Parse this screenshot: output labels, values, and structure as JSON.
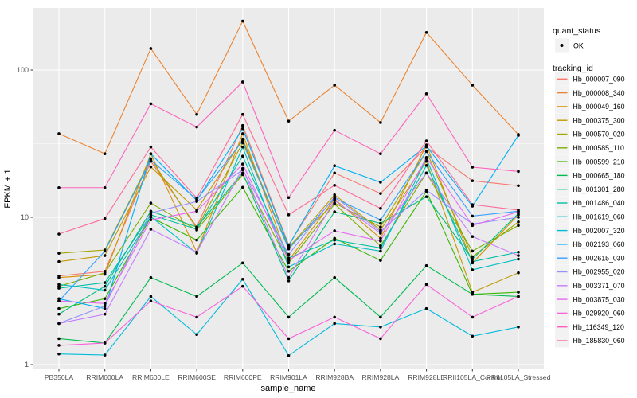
{
  "chart_data": {
    "type": "line",
    "title": "",
    "xlabel": "sample_name",
    "ylabel": "FPKM + 1",
    "y_scale": "log10",
    "ylim": [
      0.92,
      264
    ],
    "y_ticks": [
      1,
      10,
      100
    ],
    "y_tick_labels": [
      "1",
      "10",
      "100"
    ],
    "y_minor_breaks": [
      3.162,
      31.623
    ],
    "grid": true,
    "panel_bg": "#EBEBEB",
    "grid_color": "#FFFFFF",
    "key_bg": "#F2F2F2",
    "point_color": "#000000",
    "tick_label_color": "#4D4D4D",
    "legend_position": "right",
    "legend": {
      "quant_status_title": "quant_status",
      "quant_status_items": [
        {
          "label": "OK",
          "shape": "point"
        }
      ],
      "tracking_title": "tracking_id"
    },
    "x_categories": [
      "PB350LA",
      "RRIM600LA",
      "RRIM600LE",
      "RRIM600SE",
      "RRIM600PE",
      "RRIM901LA",
      "RRIM928BA",
      "RRIM928LA",
      "RRIM928LE",
      "RRII105LA_Control",
      "RRII105LA_Stressed"
    ],
    "series": [
      {
        "name": "Hb_000007_090",
        "color": "#F8766D",
        "values": [
          4.0,
          4.3,
          24,
          8.6,
          42,
          6.5,
          20,
          14.5,
          30,
          17.7,
          16.4
        ]
      },
      {
        "name": "Hb_000008_340",
        "color": "#EA8331",
        "values": [
          37,
          27,
          140,
          50,
          215,
          45,
          79,
          44,
          180,
          79,
          36.5
        ]
      },
      {
        "name": "Hb_000049_160",
        "color": "#D89000",
        "values": [
          3.9,
          4.1,
          27,
          5.8,
          37,
          5.1,
          13.3,
          7.2,
          31,
          4.9,
          10.4
        ]
      },
      {
        "name": "Hb_000375_300",
        "color": "#C09B00",
        "values": [
          5.0,
          5.5,
          22,
          11.2,
          34,
          6.2,
          14.2,
          8.2,
          24,
          3.1,
          4.2
        ]
      },
      {
        "name": "Hb_000570_020",
        "color": "#A3A500",
        "values": [
          5.7,
          6.0,
          25,
          8.4,
          32,
          6.3,
          12.5,
          8.6,
          28,
          5.4,
          9.3
        ]
      },
      {
        "name": "Hb_000585_110",
        "color": "#7CAE00",
        "values": [
          3.4,
          4.2,
          12.5,
          8.2,
          19.5,
          4.9,
          12.3,
          6.4,
          20,
          5.9,
          8.8
        ]
      },
      {
        "name": "Hb_000599_210",
        "color": "#39B600",
        "values": [
          2.4,
          2.8,
          10,
          7.0,
          16,
          4.3,
          7.2,
          5.1,
          15,
          3.0,
          3.1
        ]
      },
      {
        "name": "Hb_000665_180",
        "color": "#00BB4E",
        "values": [
          1.5,
          1.4,
          3.9,
          2.9,
          4.9,
          2.1,
          3.9,
          2.1,
          4.7,
          3.0,
          2.9
        ]
      },
      {
        "name": "Hb_001301_280",
        "color": "#00BF7D",
        "values": [
          2.2,
          3.4,
          11,
          8.6,
          20,
          3.7,
          10.9,
          9.1,
          13.8,
          5.2,
          10.6
        ]
      },
      {
        "name": "Hb_001486_040",
        "color": "#00C1A3",
        "values": [
          3.3,
          3.6,
          10.4,
          8.3,
          26,
          5.3,
          7.0,
          6.2,
          22.5,
          5.0,
          5.8
        ]
      },
      {
        "name": "Hb_001619_060",
        "color": "#00BFC4",
        "values": [
          3.5,
          3.2,
          10.1,
          5.7,
          30,
          4.6,
          6.6,
          5.9,
          25,
          4.4,
          5.2
        ]
      },
      {
        "name": "Hb_002007_320",
        "color": "#00BBDA",
        "values": [
          1.18,
          1.16,
          2.9,
          1.6,
          3.8,
          1.15,
          1.9,
          1.8,
          2.4,
          1.56,
          1.8
        ]
      },
      {
        "name": "Hb_002193_060",
        "color": "#00B0F6",
        "values": [
          2.8,
          2.4,
          27,
          13,
          40,
          6.4,
          22.4,
          17.3,
          30.5,
          11.9,
          36
        ]
      },
      {
        "name": "Hb_002615_030",
        "color": "#35A2FF",
        "values": [
          2.7,
          5.9,
          24.5,
          13.2,
          33,
          6.1,
          13.5,
          9.6,
          28,
          10.2,
          11
        ]
      },
      {
        "name": "Hb_002955_020",
        "color": "#9590FF",
        "values": [
          1.9,
          2.5,
          10.7,
          12.8,
          21,
          5.6,
          13.8,
          8.0,
          15.3,
          9.0,
          10.0
        ]
      },
      {
        "name": "Hb_003371_070",
        "color": "#C77CFF",
        "values": [
          1.9,
          2.2,
          8.3,
          5.8,
          21.5,
          3.9,
          13,
          7.8,
          20,
          7.4,
          5.5
        ]
      },
      {
        "name": "Hb_003875_030",
        "color": "#E76BF3",
        "values": [
          2.7,
          2.6,
          9.6,
          11,
          23,
          5.1,
          8.1,
          6.9,
          25.5,
          8.8,
          10.9
        ]
      },
      {
        "name": "Hb_029920_060",
        "color": "#FA62DB",
        "values": [
          1.35,
          1.4,
          2.7,
          2.1,
          3.4,
          1.5,
          2.1,
          1.5,
          3.5,
          2.1,
          2.9
        ]
      },
      {
        "name": "Hb_116349_120",
        "color": "#FF62BC",
        "values": [
          15.9,
          15.9,
          59,
          41,
          83,
          13.6,
          39,
          27,
          69,
          21.9,
          20.5
        ]
      },
      {
        "name": "Hb_185830_060",
        "color": "#FF6A98",
        "values": [
          7.7,
          9.8,
          30,
          13.5,
          50,
          10.4,
          16.5,
          11.5,
          33,
          12.2,
          11.2
        ]
      }
    ]
  }
}
